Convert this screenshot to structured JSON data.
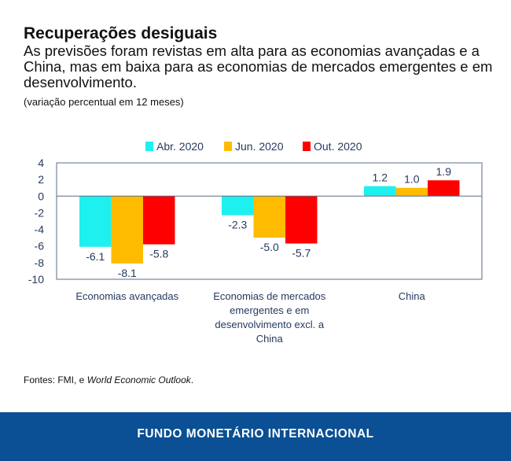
{
  "header": {
    "title": "Recuperações desiguais",
    "subtitle": "As previsões foram revistas em alta para as economias avançadas e a China, mas em baixa para as economias de mercados emergentes e em desenvolvimento.",
    "unit": "(variação percentual em 12 meses)"
  },
  "chart_data": {
    "type": "bar",
    "categories": [
      "Economias avançadas",
      "Economias de mercados emergentes e em desenvolvimento excl. a China",
      "China"
    ],
    "category_lines": [
      [
        "Economias avançadas"
      ],
      [
        "Economias de mercados",
        "emergentes e em",
        "desenvolvimento excl. a",
        "China"
      ],
      [
        "China"
      ]
    ],
    "series": [
      {
        "name": "Abr. 2020",
        "color": "#1ef0f0",
        "values": [
          -6.1,
          -2.3,
          1.2
        ]
      },
      {
        "name": "Jun. 2020",
        "color": "#ffbb00",
        "values": [
          -8.1,
          -5.0,
          1.0
        ]
      },
      {
        "name": "Out. 2020",
        "color": "#ff0000",
        "values": [
          -5.8,
          -5.7,
          1.9
        ]
      }
    ],
    "ylim": [
      -10,
      4
    ],
    "yticks": [
      4,
      2,
      0,
      -2,
      -4,
      -6,
      -8,
      -10
    ],
    "legend": "top",
    "grid": false
  },
  "source": {
    "prefix": "Fontes: FMI, e ",
    "italic": "World Economic Outlook",
    "suffix": "."
  },
  "footer": {
    "label": "FUNDO MONETÁRIO INTERNACIONAL"
  }
}
